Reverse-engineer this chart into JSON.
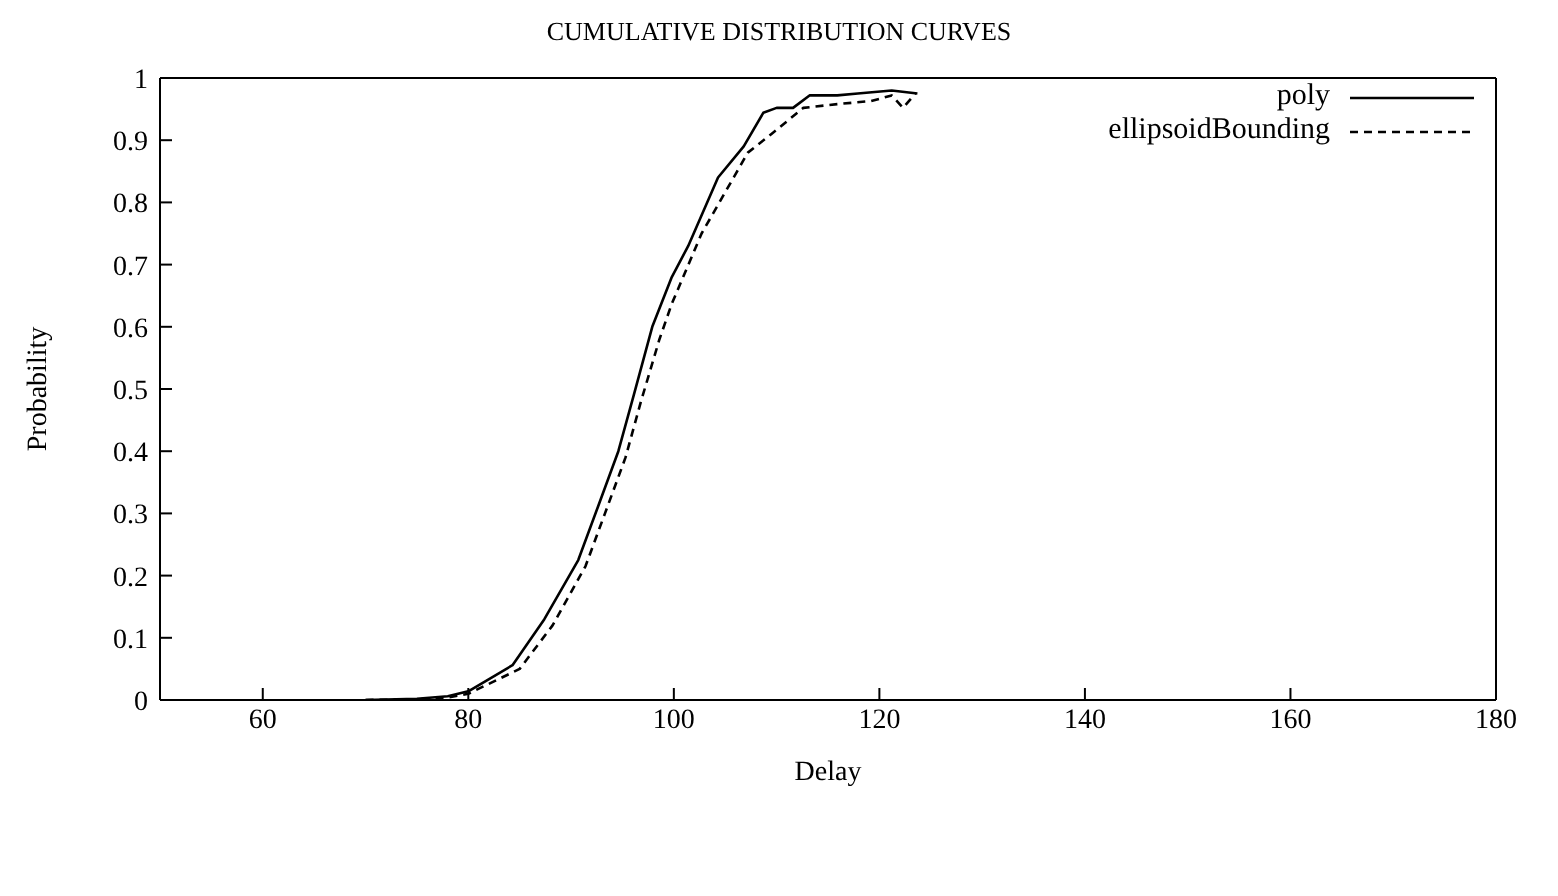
{
  "chart_data": {
    "type": "line",
    "title": "CUMULATIVE DISTRIBUTION CURVES",
    "xlabel": "Delay",
    "ylabel": "Probability",
    "xlim": [
      50,
      180
    ],
    "xticks": [
      60,
      80,
      100,
      120,
      140,
      160,
      180
    ],
    "ylim": [
      0,
      1
    ],
    "yticks": [
      0,
      0.1,
      0.2,
      0.3,
      0.4,
      0.5,
      0.6,
      0.7,
      0.8,
      0.9,
      1
    ],
    "legend": "top right",
    "marker": "none",
    "series": [
      {
        "name": "poly",
        "color": "#000000",
        "line_style": "solid",
        "x": [
          70,
          75,
          78,
          80,
          84.3,
          87.4,
          90.7,
          92.6,
          94.6,
          96.1,
          97.9,
          99.8,
          101.4,
          104.3,
          106.8,
          108.7,
          110,
          111.6,
          113.2,
          115.9,
          117.9,
          121.2,
          123.7
        ],
        "values": [
          0,
          0.002,
          0.006,
          0.014,
          0.056,
          0.13,
          0.225,
          0.31,
          0.4,
          0.49,
          0.6,
          0.68,
          0.73,
          0.84,
          0.89,
          0.944,
          0.952,
          0.952,
          0.972,
          0.972,
          0.975,
          0.98,
          0.975
        ]
      },
      {
        "name": "ellipsoidBounding",
        "color": "#000000",
        "line_style": "dashed",
        "x": [
          70,
          75,
          78,
          80,
          85,
          88.2,
          91.4,
          93.3,
          95.3,
          96.8,
          98.6,
          99.8,
          102.7,
          107.2,
          109.5,
          112.6,
          115.9,
          119.2,
          121.2,
          122.3,
          123.5
        ],
        "values": [
          0,
          0.001,
          0.004,
          0.01,
          0.05,
          0.12,
          0.215,
          0.3,
          0.39,
          0.48,
          0.58,
          0.637,
          0.75,
          0.88,
          0.91,
          0.952,
          0.958,
          0.963,
          0.972,
          0.952,
          0.975
        ]
      }
    ]
  }
}
